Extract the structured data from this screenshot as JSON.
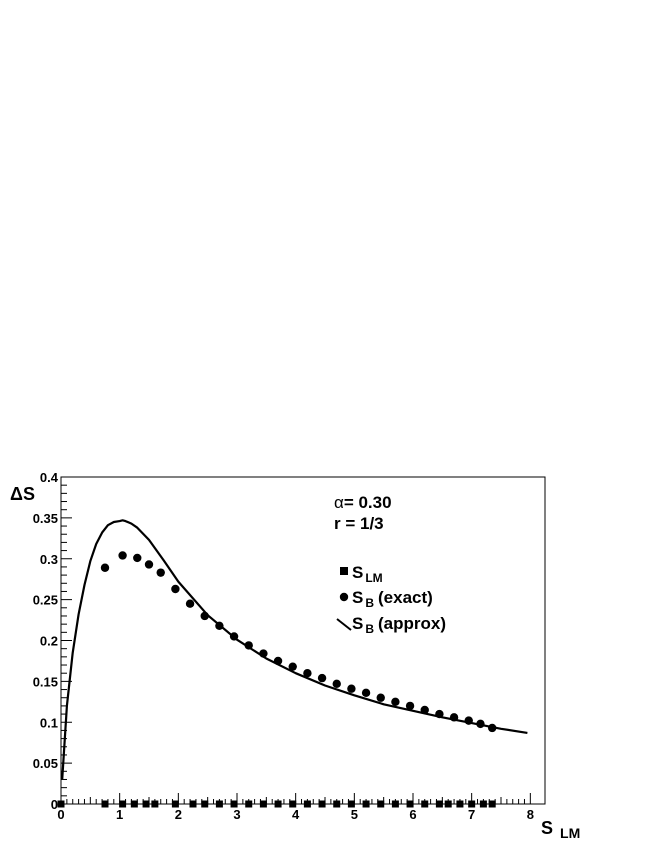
{
  "chart_data": {
    "type": "scatter",
    "xlabel": "S",
    "xlabel_sub": "LM",
    "ylabel": "ΔS",
    "xlim": [
      0,
      8.25
    ],
    "ylim": [
      0,
      0.4
    ],
    "grid": false,
    "legend_position": "top-right",
    "x_ticks": [
      "0",
      "1",
      "2",
      "3",
      "4",
      "5",
      "6",
      "7",
      "8"
    ],
    "y_ticks": [
      "0",
      "0.05",
      "0.1",
      "0.15",
      "0.2",
      "0.25",
      "0.3",
      "0.35",
      "0.4"
    ],
    "annotations": [
      {
        "symbol": "α",
        "text": "= 0.30"
      },
      {
        "text": "r = 1/3"
      }
    ],
    "series": [
      {
        "name": "S",
        "name_sub": "LM",
        "marker": "square",
        "x": [
          0.0,
          0.75,
          1.05,
          1.25,
          1.45,
          1.6,
          1.95,
          2.25,
          2.45,
          2.7,
          2.95,
          3.2,
          3.45,
          3.7,
          3.95,
          4.2,
          4.45,
          4.7,
          4.95,
          5.2,
          5.45,
          5.7,
          5.95,
          6.2,
          6.45,
          6.6,
          6.8,
          7.0,
          7.2,
          7.35
        ],
        "y": [
          0,
          0,
          0,
          0,
          0,
          0,
          0,
          0,
          0,
          0,
          0,
          0,
          0,
          0,
          0,
          0,
          0,
          0,
          0,
          0,
          0,
          0,
          0,
          0,
          0,
          0,
          0,
          0,
          0,
          0
        ]
      },
      {
        "name": "S",
        "name_sub": "B",
        "name_suffix": "(exact)",
        "marker": "circle",
        "x": [
          0.75,
          1.05,
          1.3,
          1.5,
          1.7,
          1.95,
          2.2,
          2.45,
          2.7,
          2.95,
          3.2,
          3.45,
          3.7,
          3.95,
          4.2,
          4.45,
          4.7,
          4.95,
          5.2,
          5.45,
          5.7,
          5.95,
          6.2,
          6.45,
          6.7,
          6.95,
          7.15,
          7.35
        ],
        "y": [
          0.289,
          0.304,
          0.301,
          0.293,
          0.283,
          0.263,
          0.245,
          0.23,
          0.218,
          0.205,
          0.194,
          0.184,
          0.175,
          0.168,
          0.16,
          0.154,
          0.147,
          0.141,
          0.136,
          0.13,
          0.125,
          0.12,
          0.115,
          0.11,
          0.106,
          0.102,
          0.098,
          0.093
        ]
      },
      {
        "name": "S",
        "name_sub": "B",
        "name_suffix": "(approx)",
        "marker": "line",
        "x": [
          0.02,
          0.1,
          0.2,
          0.3,
          0.4,
          0.5,
          0.6,
          0.7,
          0.8,
          0.9,
          1.0,
          1.05,
          1.1,
          1.2,
          1.3,
          1.5,
          1.75,
          2.0,
          2.5,
          3.0,
          3.5,
          4.0,
          4.5,
          5.0,
          5.5,
          6.0,
          6.5,
          7.0,
          7.5,
          7.95
        ],
        "y": [
          0.03,
          0.12,
          0.185,
          0.232,
          0.268,
          0.297,
          0.318,
          0.332,
          0.341,
          0.345,
          0.346,
          0.347,
          0.346,
          0.343,
          0.338,
          0.323,
          0.298,
          0.272,
          0.231,
          0.201,
          0.178,
          0.16,
          0.145,
          0.133,
          0.122,
          0.114,
          0.106,
          0.099,
          0.092,
          0.087
        ]
      }
    ]
  }
}
